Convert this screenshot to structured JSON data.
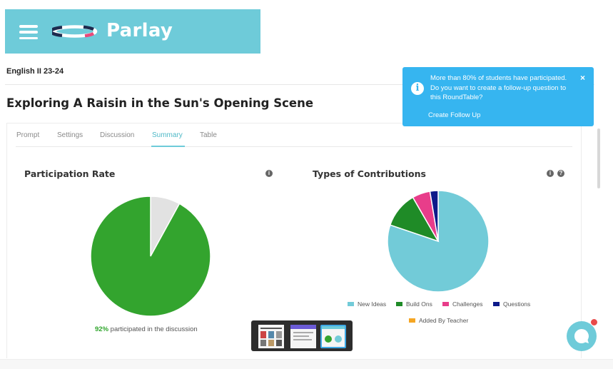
{
  "header": {
    "brand_name": "Parlay",
    "menu_icon": "hamburger-menu-icon",
    "logo_icon": "parlay-roundtable-logo-icon",
    "brand_color": "#6ecbd9"
  },
  "class_name": "English II 23-24",
  "page_title": "Exploring A Raisin in the Sun's Opening Scene",
  "tabs": [
    {
      "label": "Prompt",
      "active": false
    },
    {
      "label": "Settings",
      "active": false
    },
    {
      "label": "Discussion",
      "active": false
    },
    {
      "label": "Summary",
      "active": true
    },
    {
      "label": "Table",
      "active": false
    }
  ],
  "participation": {
    "title": "Participation Rate",
    "percent_label": "92%",
    "caption": "participated in the discussion"
  },
  "contributions": {
    "title": "Types of Contributions",
    "legend": [
      {
        "label": "New Ideas",
        "color": "#72cbd8"
      },
      {
        "label": "Build Ons",
        "color": "#1f8b27"
      },
      {
        "label": "Challenges",
        "color": "#e83d8a"
      },
      {
        "label": "Questions",
        "color": "#0d1a8a"
      },
      {
        "label": "Added By Teacher",
        "color": "#f5a623"
      }
    ]
  },
  "notification": {
    "message": "More than 80% of students have participated. Do you want to create a follow-up question to this RoundTable?",
    "action_label": "Create Follow Up",
    "close_label": "×",
    "info_icon_text": "i",
    "color": "#36b5f0"
  },
  "info_icon_text": "i",
  "help_icon_text": "?",
  "chart_data": [
    {
      "type": "pie",
      "title": "Participation Rate",
      "categories": [
        "participated",
        "not participated"
      ],
      "values": [
        92,
        8
      ],
      "colors": [
        "#33a42e",
        "#e2e2e2"
      ]
    },
    {
      "type": "pie",
      "title": "Types of Contributions",
      "categories": [
        "New Ideas",
        "Build Ons",
        "Challenges",
        "Questions",
        "Added By Teacher"
      ],
      "values": [
        77,
        11,
        5.5,
        2.5,
        0
      ],
      "colors": [
        "#72cbd8",
        "#1f8b27",
        "#e83d8a",
        "#0d1a8a",
        "#f5a623"
      ]
    }
  ]
}
